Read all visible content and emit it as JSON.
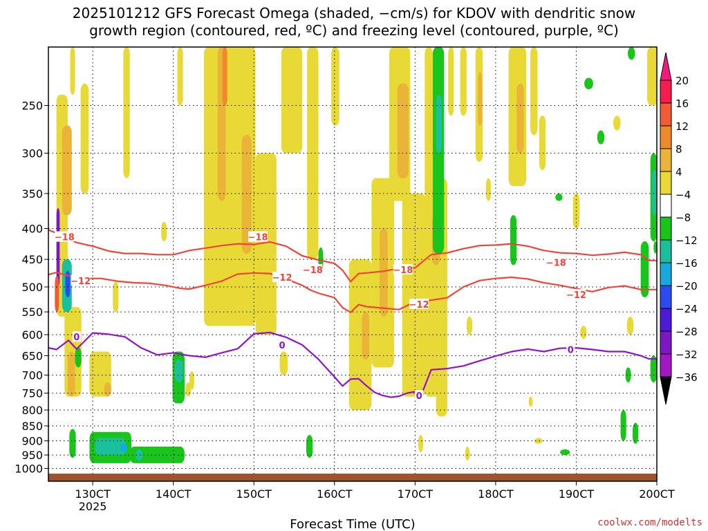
{
  "title": {
    "line1": "2025101212 GFS Forecast Omega (shaded, −cm/s) for KDOV with dendritic snow",
    "line2": "growth region (contoured, red, ºC) and freezing level (contoured, purple, ºC)"
  },
  "credit": "coolwx.com/modelts",
  "chart_data": {
    "type": "heatmap",
    "title": "2025101212 GFS Forecast Omega (shaded, −cm/s) for KDOV with dendritic snow growth region (contoured, red, ºC) and freezing level (contoured, purple, ºC)",
    "xlabel": "Forecast Time (UTC)",
    "ylabel": "",
    "xlim": [
      124.5,
      200
    ],
    "ylim": [
      1050,
      200
    ],
    "x_ticks": [
      {
        "value": 130,
        "label": "130CT",
        "sub": "2025"
      },
      {
        "value": 140,
        "label": "140CT",
        "sub": ""
      },
      {
        "value": 150,
        "label": "150CT",
        "sub": ""
      },
      {
        "value": 160,
        "label": "160CT",
        "sub": ""
      },
      {
        "value": 170,
        "label": "170CT",
        "sub": ""
      },
      {
        "value": 180,
        "label": "180CT",
        "sub": ""
      },
      {
        "value": 190,
        "label": "190CT",
        "sub": ""
      },
      {
        "value": 200,
        "label": "200CT",
        "sub": ""
      }
    ],
    "y_ticks": [
      {
        "value": 250,
        "label": "250"
      },
      {
        "value": 300,
        "label": "300"
      },
      {
        "value": 350,
        "label": "350"
      },
      {
        "value": 400,
        "label": "400"
      },
      {
        "value": 450,
        "label": "450"
      },
      {
        "value": 500,
        "label": "500"
      },
      {
        "value": 550,
        "label": "550"
      },
      {
        "value": 600,
        "label": "600"
      },
      {
        "value": 650,
        "label": "650"
      },
      {
        "value": 700,
        "label": "700"
      },
      {
        "value": 750,
        "label": "750"
      },
      {
        "value": 800,
        "label": "800"
      },
      {
        "value": 850,
        "label": "850"
      },
      {
        "value": 900,
        "label": "900"
      },
      {
        "value": 950,
        "label": "950"
      },
      {
        "value": 1000,
        "label": "1000"
      }
    ],
    "grid": true,
    "surface_pressure": 1020,
    "colorbar": {
      "levels": [
        "20",
        "16",
        "12",
        "8",
        "4",
        "−4",
        "−8",
        "−12",
        "−16",
        "−20",
        "−24",
        "−28",
        "−32",
        "−36"
      ],
      "colors": [
        "#f71b4f",
        "#f25b36",
        "#ee8a2c",
        "#e9b437",
        "#e9d936",
        "#ffffff",
        "#19c41b",
        "#1cbf9c",
        "#16a9dd",
        "#2a4bf0",
        "#4d1ad8",
        "#7d17c4",
        "#a216c6",
        "#9a9a9a"
      ],
      "top_arrow_color": "#f21a7c",
      "bottom_arrow_color": "#000000"
    },
    "series": [
      {
        "name": "-18",
        "kind": "dendritic_contour",
        "color": "#f0443a",
        "label": "−18",
        "label_at": [
          [
            126.5,
            413
          ],
          [
            150.5,
            413
          ],
          [
            157.3,
            468
          ],
          [
            168.5,
            468
          ],
          [
            187.5,
            455
          ]
        ],
        "x": [
          124.5,
          125.5,
          126.5,
          128,
          130,
          132,
          134,
          136,
          138,
          140,
          142,
          144,
          146,
          148,
          150,
          152,
          154,
          156,
          158,
          160,
          161,
          162,
          163,
          164,
          166,
          168,
          170,
          172,
          174,
          176,
          178,
          180,
          182,
          184,
          186,
          188,
          190,
          192,
          194,
          196,
          198,
          199,
          200
        ],
        "y": [
          402,
          407,
          415,
          422,
          428,
          436,
          440,
          440,
          442,
          442,
          435,
          431,
          427,
          424,
          425,
          421,
          428,
          444,
          451,
          457,
          469,
          490,
          475,
          474,
          471,
          466,
          465,
          442,
          439,
          432,
          427,
          426,
          424,
          428,
          435,
          439,
          440,
          443,
          441,
          438,
          442,
          452,
          452
        ]
      },
      {
        "name": "-12",
        "kind": "dendritic_contour",
        "color": "#f0443a",
        "label": "−12",
        "label_at": [
          [
            128.5,
            488
          ],
          [
            153.5,
            482
          ],
          [
            170.5,
            534
          ],
          [
            190,
            515
          ]
        ],
        "x": [
          124.5,
          125.5,
          127,
          129,
          131,
          133,
          135,
          137,
          139,
          141,
          142,
          144,
          146,
          148,
          150,
          152,
          154,
          156,
          157,
          158,
          160,
          161,
          162,
          163,
          164,
          166,
          168,
          170,
          172,
          174,
          176,
          178,
          180,
          182,
          184,
          186,
          188,
          190,
          192,
          194,
          196,
          198,
          200
        ],
        "y": [
          477,
          473,
          479,
          484,
          484,
          489,
          492,
          493,
          497,
          503,
          504,
          497,
          489,
          476,
          474,
          475,
          485,
          497,
          506,
          512,
          521,
          541,
          551,
          535,
          539,
          542,
          545,
          529,
          526,
          521,
          500,
          488,
          484,
          482,
          485,
          492,
          497,
          503,
          509,
          501,
          498,
          505,
          505
        ]
      },
      {
        "name": "0",
        "kind": "freezing_contour",
        "color": "#9112cc",
        "label": "0",
        "label_at": [
          [
            128,
            605
          ],
          [
            153.5,
            624
          ],
          [
            170.5,
            757
          ],
          [
            189.3,
            635
          ]
        ],
        "x": [
          124.5,
          125.5,
          127,
          128,
          130,
          132,
          134,
          136,
          138,
          140,
          142,
          144,
          146,
          148,
          150,
          152,
          154,
          156,
          158,
          160,
          161,
          162,
          163,
          164,
          165,
          166,
          167,
          168,
          169,
          170,
          171,
          172,
          174,
          176,
          178,
          180,
          182,
          184,
          186,
          188,
          190,
          192,
          194,
          196,
          198,
          199,
          200
        ],
        "y": [
          631,
          635,
          613,
          634,
          596,
          599,
          605,
          631,
          648,
          643,
          650,
          654,
          643,
          633,
          598,
          595,
          606,
          624,
          659,
          705,
          730,
          711,
          710,
          730,
          748,
          757,
          762,
          759,
          750,
          746,
          742,
          686,
          683,
          676,
          663,
          651,
          640,
          634,
          640,
          632,
          631,
          635,
          640,
          640,
          650,
          658,
          658
        ]
      }
    ],
    "regions": [
      {
        "x0": 125.5,
        "x1": 126.9,
        "p0": 240,
        "p1": 560,
        "level": "4"
      },
      {
        "x0": 126.2,
        "x1": 127.4,
        "p0": 270,
        "p1": 380,
        "level": "8"
      },
      {
        "x0": 126.5,
        "x1": 128.6,
        "p0": 540,
        "p1": 760,
        "level": "4"
      },
      {
        "x0": 126.9,
        "x1": 127.8,
        "p0": 640,
        "p1": 760,
        "level": "8"
      },
      {
        "x0": 128.5,
        "x1": 129.5,
        "p0": 230,
        "p1": 350,
        "level": "4"
      },
      {
        "x0": 129.6,
        "x1": 132.3,
        "p0": 640,
        "p1": 760,
        "level": "4"
      },
      {
        "x0": 131.4,
        "x1": 132.3,
        "p0": 720,
        "p1": 760,
        "level": "8"
      },
      {
        "x0": 127.2,
        "x1": 127.8,
        "p0": 200,
        "p1": 240,
        "level": "4"
      },
      {
        "x0": 133.8,
        "x1": 134.6,
        "p0": 200,
        "p1": 330,
        "level": "4"
      },
      {
        "x0": 132.5,
        "x1": 133.2,
        "p0": 490,
        "p1": 550,
        "level": "4"
      },
      {
        "x0": 140.5,
        "x1": 141.2,
        "p0": 200,
        "p1": 250,
        "level": "4"
      },
      {
        "x0": 141.5,
        "x1": 142.2,
        "p0": 720,
        "p1": 760,
        "level": "4"
      },
      {
        "x0": 138.5,
        "x1": 139.2,
        "p0": 390,
        "p1": 420,
        "level": "4"
      },
      {
        "x0": 142,
        "x1": 142.6,
        "p0": 690,
        "p1": 740,
        "level": "4"
      },
      {
        "x0": 143.8,
        "x1": 150.2,
        "p0": 200,
        "p1": 580,
        "level": "4"
      },
      {
        "x0": 145.5,
        "x1": 146.5,
        "p0": 200,
        "p1": 360,
        "level": "8"
      },
      {
        "x0": 146.1,
        "x1": 146.7,
        "p0": 200,
        "p1": 250,
        "level": "12"
      },
      {
        "x0": 148.5,
        "x1": 149.7,
        "p0": 280,
        "p1": 440,
        "level": "8"
      },
      {
        "x0": 150.2,
        "x1": 152.8,
        "p0": 300,
        "p1": 600,
        "level": "4"
      },
      {
        "x0": 153.4,
        "x1": 156,
        "p0": 200,
        "p1": 300,
        "level": "4"
      },
      {
        "x0": 153.2,
        "x1": 154.2,
        "p0": 640,
        "p1": 700,
        "level": "4"
      },
      {
        "x0": 156.6,
        "x1": 158,
        "p0": 200,
        "p1": 450,
        "level": "4"
      },
      {
        "x0": 159.6,
        "x1": 160.6,
        "p0": 200,
        "p1": 270,
        "level": "4"
      },
      {
        "x0": 161.8,
        "x1": 164.6,
        "p0": 450,
        "p1": 800,
        "level": "4"
      },
      {
        "x0": 163.4,
        "x1": 164.3,
        "p0": 550,
        "p1": 660,
        "level": "8"
      },
      {
        "x0": 164.6,
        "x1": 167.4,
        "p0": 330,
        "p1": 680,
        "level": "4"
      },
      {
        "x0": 165.6,
        "x1": 166.6,
        "p0": 400,
        "p1": 560,
        "level": "8"
      },
      {
        "x0": 166.8,
        "x1": 169.4,
        "p0": 200,
        "p1": 360,
        "level": "4"
      },
      {
        "x0": 167.8,
        "x1": 169.2,
        "p0": 230,
        "p1": 330,
        "level": "8"
      },
      {
        "x0": 168.4,
        "x1": 171.3,
        "p0": 350,
        "p1": 760,
        "level": "4"
      },
      {
        "x0": 171.2,
        "x1": 172.9,
        "p0": 330,
        "p1": 760,
        "level": "4"
      },
      {
        "x0": 172.6,
        "x1": 174,
        "p0": 330,
        "p1": 820,
        "level": "4"
      },
      {
        "x0": 172.1,
        "x1": 173.1,
        "p0": 380,
        "p1": 460,
        "level": "8"
      },
      {
        "x0": 171.2,
        "x1": 172.2,
        "p0": 200,
        "p1": 350,
        "level": "4"
      },
      {
        "x0": 174.1,
        "x1": 174.8,
        "p0": 200,
        "p1": 260,
        "level": "4"
      },
      {
        "x0": 175.6,
        "x1": 176.4,
        "p0": 200,
        "p1": 260,
        "level": "4"
      },
      {
        "x0": 177.5,
        "x1": 178.4,
        "p0": 200,
        "p1": 310,
        "level": "4"
      },
      {
        "x0": 177.8,
        "x1": 178.3,
        "p0": 220,
        "p1": 270,
        "level": "8"
      },
      {
        "x0": 178.8,
        "x1": 179.4,
        "p0": 330,
        "p1": 360,
        "level": "4"
      },
      {
        "x0": 181.6,
        "x1": 183.8,
        "p0": 200,
        "p1": 340,
        "level": "4"
      },
      {
        "x0": 182.6,
        "x1": 183.5,
        "p0": 230,
        "p1": 300,
        "level": "8"
      },
      {
        "x0": 184.3,
        "x1": 185.2,
        "p0": 200,
        "p1": 280,
        "level": "4"
      },
      {
        "x0": 185.4,
        "x1": 186.2,
        "p0": 260,
        "p1": 320,
        "level": "4"
      },
      {
        "x0": 184.1,
        "x1": 184.6,
        "p0": 760,
        "p1": 790,
        "level": "4"
      },
      {
        "x0": 184.8,
        "x1": 185.8,
        "p0": 890,
        "p1": 910,
        "level": "4"
      },
      {
        "x0": 189.6,
        "x1": 190.4,
        "p0": 350,
        "p1": 400,
        "level": "4"
      },
      {
        "x0": 194.6,
        "x1": 195.5,
        "p0": 260,
        "p1": 275,
        "level": "4"
      },
      {
        "x0": 198.8,
        "x1": 199.8,
        "p0": 200,
        "p1": 250,
        "level": "4"
      },
      {
        "x0": 190.5,
        "x1": 191.3,
        "p0": 580,
        "p1": 610,
        "level": "4"
      },
      {
        "x0": 196.3,
        "x1": 197.1,
        "p0": 560,
        "p1": 600,
        "level": "4"
      },
      {
        "x0": 170.4,
        "x1": 171,
        "p0": 880,
        "p1": 940,
        "level": "4"
      },
      {
        "x0": 176.2,
        "x1": 176.8,
        "p0": 920,
        "p1": 970,
        "level": "4"
      },
      {
        "x0": 176.4,
        "x1": 177.1,
        "p0": 560,
        "p1": 600,
        "level": "4"
      },
      {
        "x0": 125.5,
        "x1": 125.9,
        "p0": 370,
        "p1": 500,
        "level": "-28"
      },
      {
        "x0": 125.3,
        "x1": 125.8,
        "p0": 480,
        "p1": 550,
        "level": "16"
      },
      {
        "x0": 126.2,
        "x1": 127.4,
        "p0": 450,
        "p1": 550,
        "level": "-12"
      },
      {
        "x0": 126.6,
        "x1": 127.2,
        "p0": 470,
        "p1": 520,
        "level": "-20"
      },
      {
        "x0": 127.8,
        "x1": 128.6,
        "p0": 630,
        "p1": 680,
        "level": "-8"
      },
      {
        "x0": 127.1,
        "x1": 127.9,
        "p0": 860,
        "p1": 960,
        "level": "-8"
      },
      {
        "x0": 129.6,
        "x1": 134.8,
        "p0": 870,
        "p1": 980,
        "level": "-8"
      },
      {
        "x0": 130.3,
        "x1": 134.1,
        "p0": 890,
        "p1": 950,
        "level": "-12"
      },
      {
        "x0": 133.4,
        "x1": 134.3,
        "p0": 910,
        "p1": 940,
        "level": "-16"
      },
      {
        "x0": 134.6,
        "x1": 141.4,
        "p0": 920,
        "p1": 980,
        "level": "-8"
      },
      {
        "x0": 135.3,
        "x1": 136.2,
        "p0": 930,
        "p1": 970,
        "level": "-12"
      },
      {
        "x0": 139.9,
        "x1": 141.4,
        "p0": 640,
        "p1": 780,
        "level": "-8"
      },
      {
        "x0": 140.2,
        "x1": 141.2,
        "p0": 660,
        "p1": 720,
        "level": "-12"
      },
      {
        "x0": 156.5,
        "x1": 157.3,
        "p0": 880,
        "p1": 960,
        "level": "-8"
      },
      {
        "x0": 158,
        "x1": 158.6,
        "p0": 430,
        "p1": 470,
        "level": "-8"
      },
      {
        "x0": 172.2,
        "x1": 173.6,
        "p0": 200,
        "p1": 440,
        "level": "-8"
      },
      {
        "x0": 172.6,
        "x1": 173.3,
        "p0": 240,
        "p1": 300,
        "level": "-12"
      },
      {
        "x0": 181.8,
        "x1": 182.6,
        "p0": 380,
        "p1": 460,
        "level": "-8"
      },
      {
        "x0": 187.4,
        "x1": 188.3,
        "p0": 350,
        "p1": 360,
        "level": "-8"
      },
      {
        "x0": 188,
        "x1": 189.2,
        "p0": 930,
        "p1": 950,
        "level": "-8"
      },
      {
        "x0": 191,
        "x1": 192.1,
        "p0": 225,
        "p1": 235,
        "level": "-8"
      },
      {
        "x0": 192.6,
        "x1": 193.5,
        "p0": 275,
        "p1": 290,
        "level": "-8"
      },
      {
        "x0": 196.4,
        "x1": 197.3,
        "p0": 200,
        "p1": 210,
        "level": "-8"
      },
      {
        "x0": 195.5,
        "x1": 196.2,
        "p0": 800,
        "p1": 900,
        "level": "-8"
      },
      {
        "x0": 197,
        "x1": 197.7,
        "p0": 840,
        "p1": 910,
        "level": "-8"
      },
      {
        "x0": 196.1,
        "x1": 196.8,
        "p0": 680,
        "p1": 720,
        "level": "-8"
      },
      {
        "x0": 198,
        "x1": 199,
        "p0": 420,
        "p1": 520,
        "level": "-8"
      },
      {
        "x0": 199.2,
        "x1": 200,
        "p0": 300,
        "p1": 420,
        "level": "-8"
      },
      {
        "x0": 199.4,
        "x1": 200,
        "p0": 320,
        "p1": 380,
        "level": "-12"
      },
      {
        "x0": 199.2,
        "x1": 200,
        "p0": 650,
        "p1": 720,
        "level": "-8"
      },
      {
        "x0": 199.5,
        "x1": 200,
        "p0": 200,
        "p1": 250,
        "level": "4"
      },
      {
        "x0": 199.6,
        "x1": 200,
        "p0": 420,
        "p1": 440,
        "level": "-8"
      }
    ]
  }
}
